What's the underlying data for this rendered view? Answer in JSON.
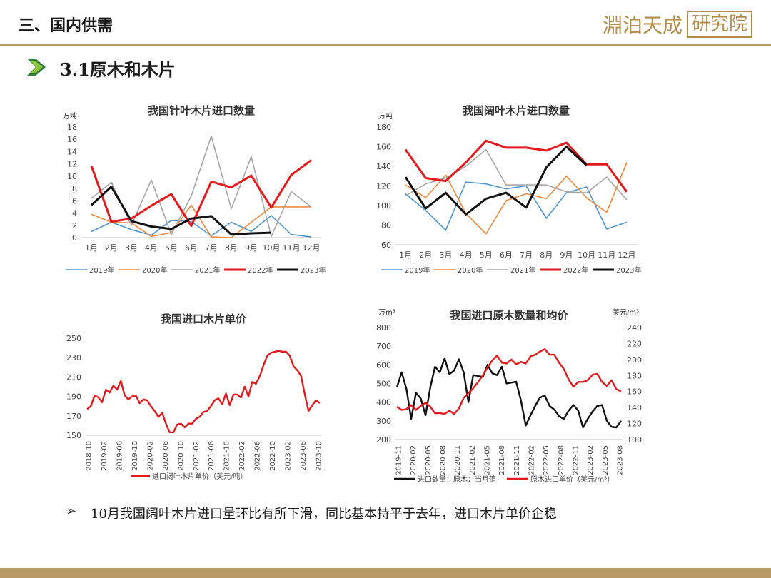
{
  "header": {
    "title": "三、国内供需",
    "logo_text": "淵泊天成",
    "logo_box": "研究院"
  },
  "section": {
    "title": "3.1原木和木片",
    "arrow_color": "#2e7d3a"
  },
  "bullet": {
    "symbol": "➢",
    "text": "10月我国阔叶木片进口量环比有所下滑，同比基本持平于去年，进口木片单价企稳"
  },
  "chart_data": [
    {
      "type": "line",
      "title": "我国针叶木片进口数量",
      "ylabel": "万吨",
      "ylim": [
        0,
        18
      ],
      "yticks": [
        0,
        2,
        4,
        6,
        8,
        10,
        12,
        14,
        16,
        18
      ],
      "categories": [
        "1月",
        "2月",
        "3月",
        "4月",
        "5月",
        "6月",
        "7月",
        "8月",
        "9月",
        "10月",
        "11月",
        "12月"
      ],
      "series": [
        {
          "name": "2019年",
          "color": "#4e96cf",
          "width": 1.6,
          "values": [
            1.0,
            2.5,
            1.3,
            0.4,
            2.8,
            2.6,
            0.3,
            2.5,
            1.0,
            3.6,
            0.5,
            0.1
          ]
        },
        {
          "name": "2020年",
          "color": "#f0883a",
          "width": 1.6,
          "values": [
            3.8,
            2.5,
            2.4,
            0.2,
            0.8,
            5.3,
            0.1,
            0.0,
            2.5,
            5.0,
            5.0,
            5.0
          ]
        },
        {
          "name": "2021年",
          "color": "#a6a6a6",
          "width": 1.6,
          "values": [
            6.4,
            9.0,
            2.0,
            9.4,
            0.5,
            6.8,
            16.5,
            4.7,
            13.2,
            0.2,
            7.5,
            5.0
          ]
        },
        {
          "name": "2022年",
          "color": "#e31a1c",
          "width": 3,
          "values": [
            11.7,
            2.6,
            3.1,
            5.2,
            7.1,
            1.9,
            9.1,
            8.2,
            10.1,
            4.9,
            10.2,
            12.6
          ]
        },
        {
          "name": "2023年",
          "color": "#111111",
          "width": 3,
          "values": [
            5.3,
            8.3,
            2.7,
            1.8,
            1.4,
            3.1,
            3.5,
            0.5,
            0.7,
            0.8,
            null,
            null
          ]
        }
      ]
    },
    {
      "type": "line",
      "title": "我国阔叶木片进口数量",
      "ylabel": "万吨",
      "ylim": [
        60,
        180
      ],
      "yticks": [
        60,
        80,
        100,
        120,
        140,
        160,
        180
      ],
      "categories": [
        "1月",
        "2月",
        "3月",
        "4月",
        "5月",
        "6月",
        "7月",
        "8月",
        "9月",
        "10月",
        "11月",
        "12月"
      ],
      "series": [
        {
          "name": "2019年",
          "color": "#4e96cf",
          "width": 1.6,
          "values": [
            112,
            95,
            75,
            124,
            122,
            117,
            120,
            87,
            113,
            119,
            76,
            83
          ]
        },
        {
          "name": "2020年",
          "color": "#f0883a",
          "width": 1.6,
          "values": [
            121,
            108,
            131,
            92,
            71,
            105,
            112,
            107,
            130,
            108,
            93,
            144
          ]
        },
        {
          "name": "2021年",
          "color": "#a6a6a6",
          "width": 1.6,
          "values": [
            110,
            122,
            128,
            140,
            157,
            121,
            121,
            121,
            114,
            113,
            129,
            106
          ]
        },
        {
          "name": "2022年",
          "color": "#e31a1c",
          "width": 3,
          "values": [
            157,
            128,
            125,
            144,
            166,
            159,
            159,
            156,
            164,
            142,
            142,
            114
          ]
        },
        {
          "name": "2023年",
          "color": "#111111",
          "width": 3,
          "values": [
            129,
            97,
            113,
            91,
            107,
            113,
            98,
            139,
            160,
            141,
            null,
            null
          ]
        }
      ]
    },
    {
      "type": "line",
      "title": "我国进口木片单价",
      "ylim": [
        150,
        250
      ],
      "yticks": [
        150,
        170,
        190,
        210,
        230,
        250
      ],
      "xticks": [
        "2018-10",
        "2019-02",
        "2019-06",
        "2019-10",
        "2020-02",
        "2020-06",
        "2020-10",
        "2021-02",
        "2021-06",
        "2021-10",
        "2022-02",
        "2022-06",
        "2022-10",
        "2023-02",
        "2023-06",
        "2023-10"
      ],
      "series": [
        {
          "name": "进口阔叶木片单价（美元/吨）",
          "color": "#e31a1c",
          "width": 2.4,
          "values": [
            177,
            180,
            191,
            189,
            184,
            197,
            194,
            201,
            197,
            206,
            191,
            187,
            190,
            191,
            183,
            187,
            186,
            180,
            175,
            169,
            173,
            162,
            153,
            153,
            161,
            162,
            158,
            162,
            162,
            167,
            169,
            174,
            175,
            180,
            186,
            188,
            182,
            193,
            181,
            192,
            192,
            189,
            200,
            190,
            205,
            203,
            211,
            222,
            232,
            235,
            236,
            237,
            236,
            236,
            232,
            221,
            217,
            211,
            192,
            175,
            181,
            186,
            183
          ]
        }
      ]
    },
    {
      "type": "line",
      "title": "我国进口原木数量和均价",
      "ylabel": "万m³",
      "y2label": "美元/m³",
      "ylim": [
        200,
        800
      ],
      "yticks": [
        200,
        300,
        400,
        500,
        600,
        700,
        800
      ],
      "y2lim": [
        100,
        240
      ],
      "y2ticks": [
        100,
        120,
        140,
        160,
        180,
        200,
        220,
        240
      ],
      "xticks": [
        "2019-11",
        "2020-02",
        "2020-05",
        "2020-08",
        "2020-11",
        "2021-02",
        "2021-05",
        "2021-08",
        "2021-11",
        "2022-02",
        "2022-05",
        "2022-08",
        "2022-11",
        "2023-02",
        "2023-05",
        "2023-08"
      ],
      "series": [
        {
          "name": "进口数量：原木：当月值",
          "axis": "left",
          "color": "#111111",
          "width": 2.4,
          "values": [
            480,
            560,
            470,
            310,
            450,
            420,
            330,
            480,
            590,
            560,
            635,
            550,
            570,
            630,
            560,
            400,
            545,
            540,
            535,
            600,
            555,
            545,
            590,
            500,
            505,
            510,
            410,
            275,
            330,
            380,
            425,
            435,
            380,
            360,
            325,
            310,
            355,
            385,
            355,
            265,
            310,
            350,
            380,
            385,
            300,
            268,
            265,
            300
          ]
        },
        {
          "name": "原木进口单价（美元/m³）",
          "axis": "right",
          "color": "#e31a1c",
          "width": 2.4,
          "values": [
            141,
            137,
            138,
            143,
            137,
            142,
            146,
            141,
            133,
            133,
            132,
            136,
            132,
            139,
            152,
            158,
            164,
            172,
            180,
            190,
            199,
            205,
            196,
            195,
            200,
            194,
            197,
            195,
            204,
            206,
            210,
            213,
            206,
            206,
            196,
            188,
            175,
            166,
            172,
            172,
            174,
            181,
            182,
            172,
            167,
            174,
            163,
            160
          ]
        }
      ]
    }
  ]
}
